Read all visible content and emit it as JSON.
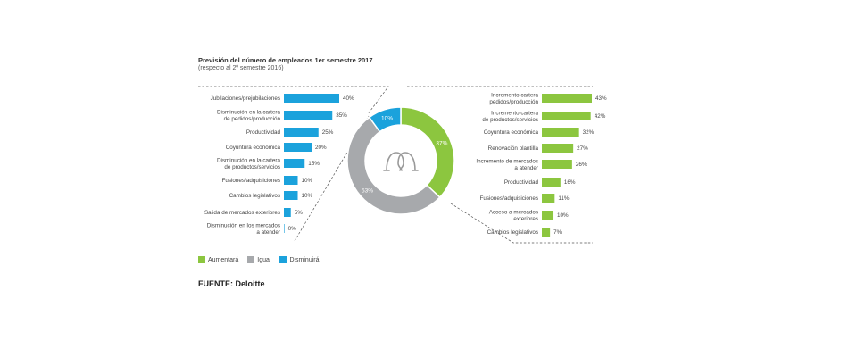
{
  "chart_data": {
    "title": "Previsión del número de empleados 1er semestre 2017",
    "subtitle": "(respecto al 2º semestre 2016)",
    "colors": {
      "aumentara": "#8cc63f",
      "igual": "#a7a9ac",
      "disminuira": "#1ba2dc"
    },
    "disminuira_bars": {
      "type": "bar",
      "categories": [
        [
          "Jubilaciones/prejubilaciones"
        ],
        [
          "Disminución en la cartera",
          "de pedidos/producción"
        ],
        [
          "Productividad"
        ],
        [
          "Coyuntura económica"
        ],
        [
          "Disminución en la cartera",
          "de productos/servicios"
        ],
        [
          "Fusiones/adquisiciones"
        ],
        [
          "Cambios legislativos"
        ],
        [
          "Salida de mercados exteriores"
        ],
        [
          "Disminución en los mercados",
          "a atender"
        ]
      ],
      "values": [
        40,
        35,
        25,
        20,
        15,
        10,
        10,
        5,
        0
      ],
      "labels": [
        "40%",
        "35%",
        "25%",
        "20%",
        "15%",
        "10%",
        "10%",
        "5%",
        "0%"
      ]
    },
    "donut": {
      "type": "pie",
      "slices": [
        {
          "key": "aumentara",
          "value": 37,
          "label": "37%"
        },
        {
          "key": "igual",
          "value": 53,
          "label": "53%"
        },
        {
          "key": "disminuira",
          "value": 10,
          "label": "10%"
        }
      ]
    },
    "aumentara_bars": {
      "type": "bar",
      "categories": [
        [
          "Incremento cartera",
          "pedidos/producción"
        ],
        [
          "Incremento cartera",
          "de productos/servicios"
        ],
        [
          "Coyuntura económica"
        ],
        [
          "Renovación plantilla"
        ],
        [
          "Incremento de mercados",
          "a atender"
        ],
        [
          "Productividad"
        ],
        [
          "Fusiones/adquisiciones"
        ],
        [
          "Acceso a mercados",
          "exteriores"
        ],
        [
          "Cambios legislativos"
        ]
      ],
      "values": [
        43,
        42,
        32,
        27,
        26,
        16,
        11,
        10,
        7
      ],
      "labels": [
        "43%",
        "42%",
        "32%",
        "27%",
        "26%",
        "16%",
        "11%",
        "10%",
        "7%"
      ]
    },
    "legend": [
      "Aumentará",
      "Igual",
      "Disminuirá"
    ]
  },
  "source": "FUENTE: Deloitte"
}
